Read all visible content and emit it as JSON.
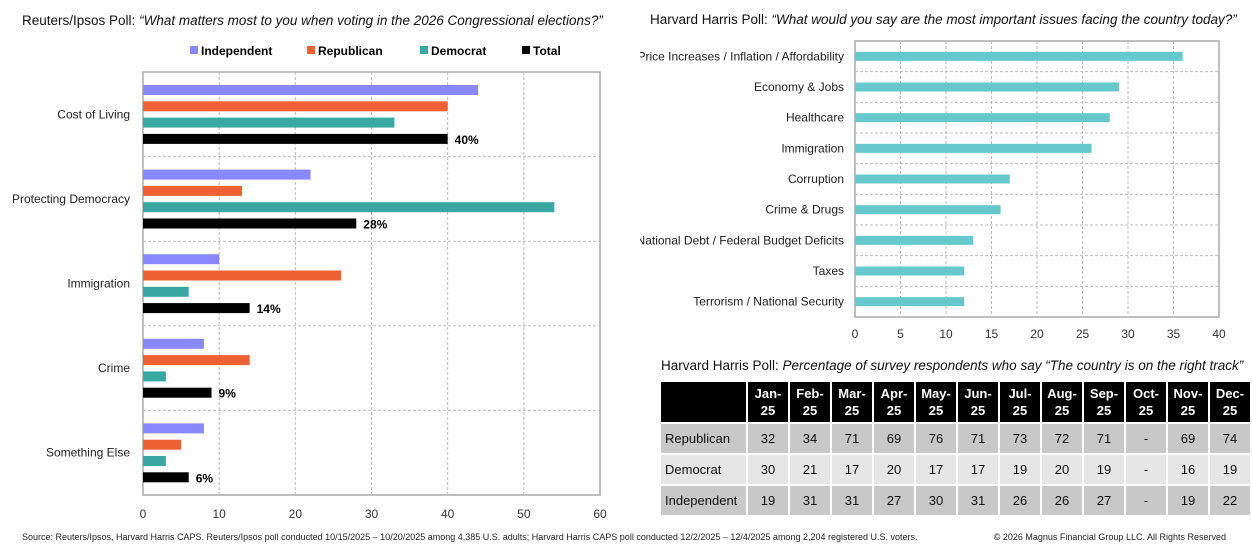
{
  "left": {
    "title_prefix": "Reuters/Ipsos Poll:",
    "title_question": "“What matters most to you when voting in the 2026 Congressional elections?”"
  },
  "right": {
    "title_prefix": "Harvard Harris Poll:",
    "title_question": "“What would you say are the most important issues facing the country today?”"
  },
  "chart_data": [
    {
      "type": "bar",
      "orientation": "horizontal",
      "categories": [
        "Cost of Living",
        "Protecting Democracy",
        "Immigration",
        "Crime",
        "Something Else"
      ],
      "series": [
        {
          "name": "Independent",
          "color": "#8a88ff",
          "values": [
            44,
            22,
            10,
            8,
            8
          ]
        },
        {
          "name": "Republican",
          "color": "#f06035",
          "values": [
            40,
            13,
            26,
            14,
            5
          ]
        },
        {
          "name": "Democrat",
          "color": "#3aa8a2",
          "values": [
            33,
            54,
            6,
            3,
            3
          ]
        },
        {
          "name": "Total",
          "color": "#000000",
          "values": [
            40,
            28,
            14,
            9,
            6
          ]
        }
      ],
      "data_labels": [
        "40%",
        "28%",
        "14%",
        "9%",
        "6%"
      ],
      "xlim": [
        0,
        60
      ],
      "xticks": [
        0,
        10,
        20,
        30,
        40,
        50,
        60
      ],
      "grid": true,
      "legend": "top"
    },
    {
      "type": "bar",
      "orientation": "horizontal",
      "categories": [
        "Price Increases / Inflation / Affordability",
        "Economy & Jobs",
        "Healthcare",
        "Immigration",
        "Corruption",
        "Crime & Drugs",
        "National Debt / Federal Budget Deficits",
        "Taxes",
        "Terrorism / National Security"
      ],
      "values": [
        36,
        29,
        28,
        26,
        17,
        16,
        13,
        12,
        12
      ],
      "color": "#67c8cc",
      "xlim": [
        0,
        40
      ],
      "xticks": [
        0,
        5,
        10,
        15,
        20,
        25,
        30,
        35,
        40
      ],
      "grid": true
    }
  ],
  "table": {
    "title_prefix": "Harvard Harris Poll:",
    "title_rest": "Percentage of survey respondents who say “The country is on the right track”",
    "columns": [
      [
        "Jan-",
        "25"
      ],
      [
        "Feb-",
        "25"
      ],
      [
        "Mar-",
        "25"
      ],
      [
        "Apr-",
        "25"
      ],
      [
        "May-",
        "25"
      ],
      [
        "Jun-",
        "25"
      ],
      [
        "Jul-",
        "25"
      ],
      [
        "Aug-",
        "25"
      ],
      [
        "Sep-",
        "25"
      ],
      [
        "Oct-",
        "25"
      ],
      [
        "Nov-",
        "25"
      ],
      [
        "Dec-",
        "25"
      ]
    ],
    "rows": [
      {
        "label": "Republican",
        "values": [
          "32",
          "34",
          "71",
          "69",
          "76",
          "71",
          "73",
          "72",
          "71",
          "-",
          "69",
          "74"
        ]
      },
      {
        "label": "Democrat",
        "values": [
          "30",
          "21",
          "17",
          "20",
          "17",
          "17",
          "19",
          "20",
          "19",
          "-",
          "16",
          "19"
        ]
      },
      {
        "label": "Independent",
        "values": [
          "19",
          "31",
          "31",
          "27",
          "30",
          "31",
          "26",
          "26",
          "27",
          "-",
          "19",
          "22"
        ]
      }
    ]
  },
  "footer": {
    "source": "Source: Reuters/Ipsos, Harvard Harris CAPS. Reuters/Ipsos poll conducted 10/15/2025 – 10/20/2025 among 4,385 U.S. adults; Harvard Harris CAPS poll conducted 12/2/2025 – 12/4/2025 among 2,204 registered U.S. voters.",
    "copyright": "© 2026 Magnus Financial Group LLC. All Rights Reserved"
  }
}
